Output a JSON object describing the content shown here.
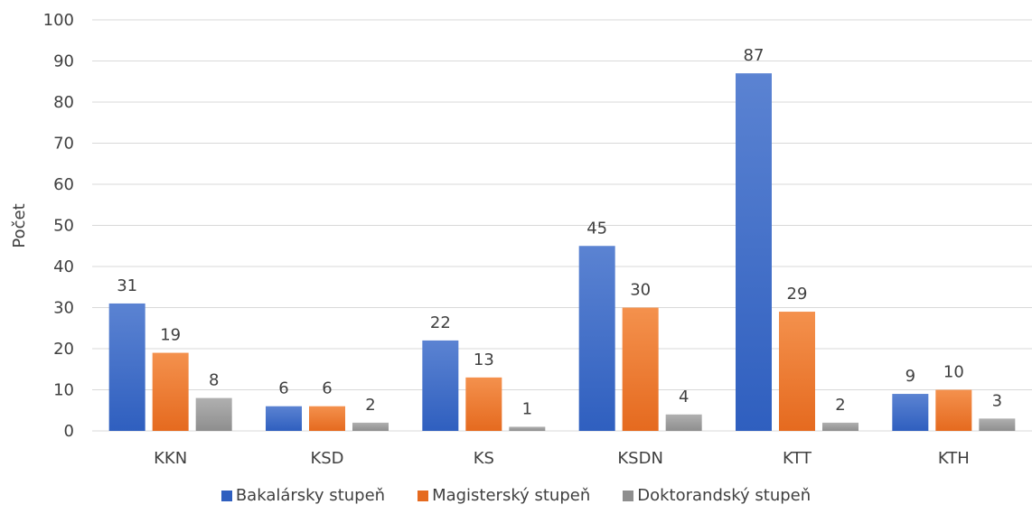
{
  "chart_data": {
    "type": "bar",
    "categories": [
      "KKN",
      "KSD",
      "KS",
      "KSDN",
      "KTT",
      "KTH"
    ],
    "series": [
      {
        "name": "Bakalársky stupeň",
        "values": [
          31,
          6,
          22,
          45,
          87,
          9
        ],
        "color_top": "#5b83d2",
        "color_bottom": "#2f5fbf"
      },
      {
        "name": "Magisterský stupeň",
        "values": [
          19,
          6,
          13,
          30,
          29,
          10
        ],
        "color_top": "#f4914d",
        "color_bottom": "#e56a1f"
      },
      {
        "name": "Doktorandský stupeň",
        "values": [
          8,
          2,
          1,
          4,
          2,
          3
        ],
        "color_top": "#b0b0b0",
        "color_bottom": "#8e8e8e"
      }
    ],
    "title": "",
    "xlabel": "",
    "ylabel": "Počet",
    "ylim": [
      0,
      100
    ],
    "yticks": [
      0,
      10,
      20,
      30,
      40,
      50,
      60,
      70,
      80,
      90,
      100
    ],
    "grid": true,
    "legend": "bottom"
  }
}
